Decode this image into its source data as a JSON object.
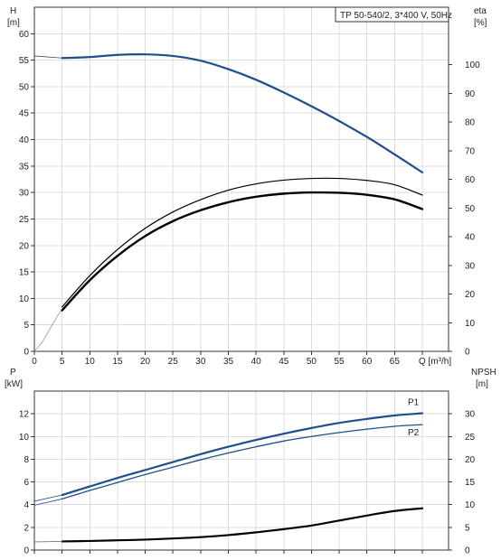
{
  "colors": {
    "blue": "#1f4e8c",
    "black": "#000000",
    "grid": "#dcdcdc",
    "frame": "#333333"
  },
  "chart_data": [
    {
      "type": "line",
      "title": "TP 50-540/2, 3*400 V, 50Hz",
      "xlabel": "Q [m³/h]",
      "ylabel_left": "H",
      "ylabel_left_unit": "[m]",
      "ylabel_right": "eta",
      "ylabel_right_unit": "[%]",
      "xlim": [
        0,
        70
      ],
      "x_ticks": [
        0,
        5,
        10,
        15,
        20,
        25,
        30,
        35,
        40,
        45,
        50,
        55,
        60,
        65
      ],
      "x_tick_label_last": "Q [m³/h]",
      "ylim_left": [
        0,
        65
      ],
      "y_ticks_left": [
        0,
        5,
        10,
        15,
        20,
        25,
        30,
        35,
        40,
        45,
        50,
        55,
        60
      ],
      "ylim_right": [
        0,
        120
      ],
      "y_ticks_right": [
        0,
        10,
        20,
        30,
        40,
        50,
        60,
        70,
        80,
        90,
        100
      ],
      "grid": true,
      "series": [
        {
          "axis": "left",
          "color": "#1f4e8c",
          "width": 2.2,
          "x": [
            5,
            10,
            15,
            20,
            25,
            30,
            35,
            40,
            45,
            50,
            55,
            60,
            65,
            70
          ],
          "y": [
            55.4,
            55.6,
            56.0,
            56.1,
            55.8,
            54.9,
            53.3,
            51.3,
            48.9,
            46.3,
            43.5,
            40.5,
            37.2,
            33.8
          ]
        },
        {
          "axis": "left",
          "color": "#4a4a4a",
          "width": 0.8,
          "x": [
            0,
            5
          ],
          "y": [
            55.8,
            55.4
          ]
        },
        {
          "axis": "right",
          "color": "#000000",
          "width": 1.2,
          "x": [
            5,
            10,
            15,
            20,
            25,
            30,
            35,
            40,
            45,
            50,
            55,
            60,
            65,
            70
          ],
          "y": [
            15.5,
            26.4,
            35.5,
            42.9,
            48.6,
            52.9,
            56.2,
            58.4,
            59.7,
            60.3,
            60.3,
            59.6,
            58.1,
            54.5
          ]
        },
        {
          "axis": "right",
          "color": "#000000",
          "width": 2.4,
          "x": [
            5,
            10,
            15,
            20,
            25,
            30,
            35,
            40,
            45,
            50,
            55,
            60,
            65,
            70
          ],
          "y": [
            14.3,
            24.8,
            33.3,
            40.2,
            45.4,
            49.2,
            52.0,
            53.9,
            55.0,
            55.4,
            55.3,
            54.6,
            53.0,
            49.6
          ]
        },
        {
          "axis": "right",
          "color": "#9a9a9a",
          "width": 0.8,
          "x": [
            0,
            1.5,
            3,
            5
          ],
          "y": [
            0,
            3.5,
            8.5,
            15.0
          ]
        }
      ]
    },
    {
      "type": "line",
      "ylabel_left": "P",
      "ylabel_left_unit": "[kW]",
      "ylabel_right": "NPSH",
      "ylabel_right_unit": "[m]",
      "xlim": [
        0,
        70
      ],
      "ylim_left": [
        0,
        14
      ],
      "y_ticks_left": [
        0,
        2,
        4,
        6,
        8,
        10,
        12
      ],
      "ylim_right": [
        0,
        35
      ],
      "y_ticks_right": [
        0,
        5,
        10,
        15,
        20,
        25,
        30
      ],
      "grid": true,
      "series": [
        {
          "name": "P1",
          "axis": "left",
          "color": "#1f4e8c",
          "width": 2.2,
          "x": [
            5,
            10,
            15,
            20,
            25,
            30,
            35,
            40,
            45,
            50,
            55,
            60,
            65,
            70
          ],
          "y": [
            4.85,
            5.6,
            6.35,
            7.05,
            7.75,
            8.45,
            9.1,
            9.7,
            10.25,
            10.75,
            11.2,
            11.55,
            11.85,
            12.05
          ]
        },
        {
          "name": "P2",
          "axis": "left",
          "color": "#1f4e8c",
          "width": 1.3,
          "x": [
            5,
            10,
            15,
            20,
            25,
            30,
            35,
            40,
            45,
            50,
            55,
            60,
            65,
            70
          ],
          "y": [
            4.5,
            5.25,
            5.95,
            6.65,
            7.3,
            7.95,
            8.55,
            9.1,
            9.6,
            10.0,
            10.35,
            10.65,
            10.9,
            11.05
          ]
        },
        {
          "axis": "left",
          "color": "#1f4e8c",
          "width": 0.8,
          "x": [
            0,
            5
          ],
          "y": [
            4.3,
            4.85
          ]
        },
        {
          "axis": "left",
          "color": "#1f4e8c",
          "width": 0.8,
          "x": [
            0,
            5
          ],
          "y": [
            3.95,
            4.5
          ]
        },
        {
          "axis": "right",
          "color": "#000000",
          "width": 2.2,
          "x": [
            5,
            10,
            15,
            20,
            25,
            30,
            35,
            40,
            45,
            50,
            55,
            60,
            65,
            70
          ],
          "y": [
            1.9,
            2.0,
            2.15,
            2.3,
            2.55,
            2.85,
            3.3,
            3.9,
            4.6,
            5.4,
            6.5,
            7.6,
            8.6,
            9.2
          ]
        },
        {
          "axis": "right",
          "color": "#777777",
          "width": 0.8,
          "x": [
            0,
            5
          ],
          "y": [
            1.8,
            1.9
          ]
        }
      ]
    }
  ]
}
